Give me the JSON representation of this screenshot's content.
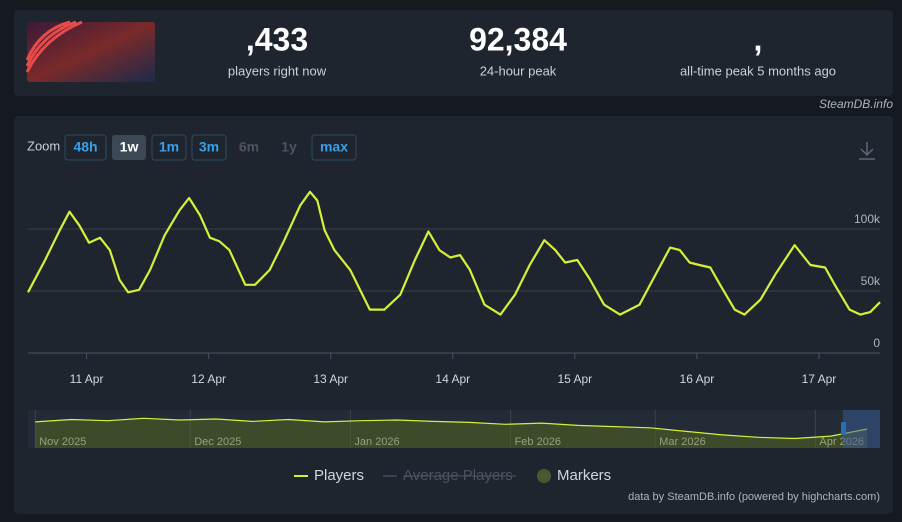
{
  "header": {
    "current": {
      "value": ",433",
      "label": "players right now"
    },
    "peak24": {
      "value": "92,384",
      "label": "24-hour peak"
    },
    "alltime": {
      "value": ",",
      "label": "all-time peak 5 months ago"
    }
  },
  "credit": "SteamDB.info",
  "zoom": {
    "label": "Zoom",
    "options": [
      "48h",
      "1w",
      "1m",
      "3m",
      "6m",
      "1y",
      "max"
    ],
    "active": "1w",
    "disabled": [
      "6m",
      "1y"
    ]
  },
  "chart_data": [
    {
      "type": "line",
      "x": [
        -0.48,
        -0.34,
        -0.22,
        -0.14,
        -0.06,
        0.02,
        0.11,
        0.19,
        0.27,
        0.34,
        0.43,
        0.52,
        0.64,
        0.76,
        0.84,
        0.93,
        1.01,
        1.09,
        1.17,
        1.3,
        1.38,
        1.5,
        1.62,
        1.75,
        1.83,
        1.89,
        1.95,
        2.03,
        2.16,
        2.32,
        2.44,
        2.57,
        2.69,
        2.8,
        2.89,
        2.98,
        3.06,
        3.14,
        3.26,
        3.39,
        3.51,
        3.63,
        3.75,
        3.84,
        3.92,
        4.02,
        4.12,
        4.24,
        4.37,
        4.53,
        4.66,
        4.78,
        4.86,
        4.94,
        5.02,
        5.11,
        5.19,
        5.31,
        5.39,
        5.52,
        5.64,
        5.8,
        5.93,
        6.05,
        6.13,
        6.25,
        6.34,
        6.42,
        6.5
      ],
      "series": [
        {
          "name": "Players",
          "color": "#d6f03a",
          "values": [
            49000,
            75000,
            99000,
            114000,
            103000,
            89000,
            93000,
            83000,
            59000,
            49000,
            51000,
            67000,
            95000,
            115000,
            125000,
            111000,
            93000,
            90000,
            83000,
            55000,
            55000,
            67000,
            91000,
            119000,
            130000,
            123000,
            99000,
            83000,
            67000,
            35000,
            35000,
            47000,
            75000,
            98000,
            83000,
            77000,
            79000,
            67000,
            39000,
            31000,
            47000,
            71000,
            91000,
            83000,
            73000,
            75000,
            60000,
            39000,
            31000,
            39000,
            63000,
            85000,
            83000,
            73000,
            71000,
            69000,
            55000,
            35000,
            31000,
            43000,
            63000,
            87000,
            71000,
            69000,
            55000,
            35000,
            31000,
            33000,
            41000
          ]
        }
      ],
      "xlim": [
        -0.48,
        6.5
      ],
      "xticks": [
        {
          "value": 0,
          "label": "11 Apr"
        },
        {
          "value": 1,
          "label": "12 Apr"
        },
        {
          "value": 2,
          "label": "13 Apr"
        },
        {
          "value": 3,
          "label": "14 Apr"
        },
        {
          "value": 4,
          "label": "15 Apr"
        },
        {
          "value": 5,
          "label": "16 Apr"
        },
        {
          "value": 6,
          "label": "17 Apr"
        }
      ],
      "ylim": [
        0,
        146000
      ],
      "yticks": [
        0,
        {
          "value": 50000,
          "label": "50k"
        },
        {
          "value": 100000,
          "label": "100k"
        }
      ],
      "grid": true,
      "legend_extra": [
        "Average Players",
        "Markers"
      ]
    },
    {
      "type": "area",
      "x": [
        0,
        7,
        14,
        21,
        28,
        35,
        42,
        49,
        56,
        63,
        70,
        77,
        84,
        91,
        98,
        105,
        112,
        119,
        126,
        133,
        140,
        147,
        154,
        161
      ],
      "series": [
        {
          "name": "Players",
          "color": "#d6f03a",
          "values": [
            110000,
            120000,
            115000,
            125000,
            118000,
            122000,
            112000,
            120000,
            110000,
            115000,
            118000,
            112000,
            108000,
            100000,
            105000,
            95000,
            90000,
            85000,
            70000,
            55000,
            45000,
            40000,
            50000,
            80000
          ]
        }
      ],
      "xlim": [
        -1.4,
        163.5
      ],
      "xticks": [
        {
          "value": 0,
          "label": "Nov 2025"
        },
        {
          "value": 30,
          "label": "Dec 2025"
        },
        {
          "value": 61,
          "label": "Jan 2026"
        },
        {
          "value": 92,
          "label": "Feb 2026"
        },
        {
          "value": 120,
          "label": "Mar 2026"
        },
        {
          "value": 151,
          "label": "Apr 2026"
        }
      ],
      "ylim": [
        0,
        160000
      ]
    }
  ],
  "footer": "data by SteamDB.info (powered by highcharts.com)"
}
